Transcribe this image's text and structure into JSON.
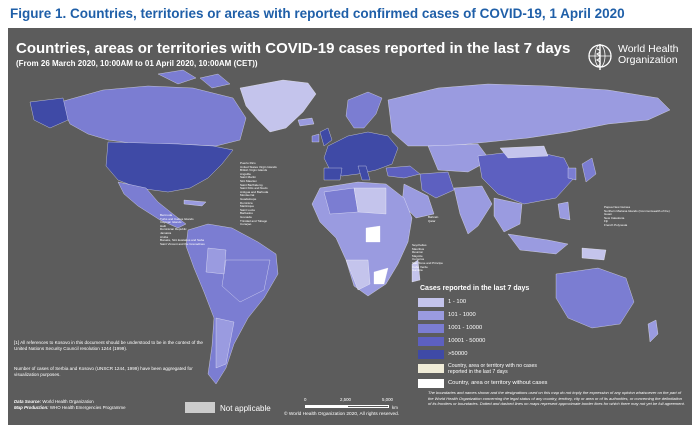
{
  "figure_title": "Figure 1. Countries, territories or areas with reported confirmed cases of COVID-19, 1 April 2020",
  "map": {
    "title": "Countries, areas or territories with COVID-19  cases reported in the last 7 days",
    "subtitle": "(From 26 March 2020, 10:00AM  to 01 April 2020, 10:00AM (CET))",
    "organization_line1": "World Health",
    "organization_line2": "Organization",
    "background_color": "#5c5c5c",
    "ocean_color": "#5c5c5c",
    "country_colors": {
      "cases_1_100": "#c4c4ec",
      "cases_101_1000": "#9a9be0",
      "cases_1001_10000": "#7b7dd2",
      "cases_10001_50000": "#5d60c0",
      "cases_over_50000": "#3f4aa6",
      "no_cases_last_7_days": "#f0ecd8",
      "without_cases": "#ffffff",
      "not_applicable": "#cccccc"
    }
  },
  "legend": {
    "title": "Cases reported in the last 7 days",
    "items": [
      {
        "label": "1 - 100",
        "color": "#c4c4ec"
      },
      {
        "label": "101 - 1000",
        "color": "#9a9be0"
      },
      {
        "label": "1001 - 10000",
        "color": "#7b7dd2"
      },
      {
        "label": "10001 - 50000",
        "color": "#5d60c0"
      },
      {
        "label": ">50000",
        "color": "#3f4aa6"
      },
      {
        "label": "Country, area or territory with no cases reported in the last 7 days",
        "color": "#f0ecd8"
      },
      {
        "label": "Country, area or territory without cases",
        "color": "#ffffff"
      }
    ]
  },
  "not_applicable": {
    "label": "Not applicable",
    "color": "#cccccc"
  },
  "notes": {
    "kosovo": "[1] All references to Kosovo in this document should be understood to be in the context of the United Nations Security Council resolution 1244 (1999).",
    "serbia": "Number of cases of Serbia and Kosovo (UNSCR 1244, 1999) have been aggregated for visualization purposes.",
    "data_source_label": "Data Source:",
    "data_source": "World Health Organization",
    "map_production_label": "Map Production:",
    "map_production": "WHO Health Emergencies Programme"
  },
  "scale": {
    "ticks": [
      "0",
      "2,500",
      "5,000"
    ],
    "unit": "km"
  },
  "copyright": "© World Health Organization 2020, All rights reserved.",
  "disclaimer": "The boundaries and names shown and the designations used on this map do not imply the expression of any opinion whatsoever on the part of the World Health Organization concerning the legal status of any country, territory, city or area or of its authorities, or concerning the delimitation of its frontiers or boundaries. Dotted and dashed lines on maps represent approximate border lines for which there may not yet be full agreement.",
  "map_labels": {
    "caribbean": [
      "Puerto Rico",
      "United States Virgin Islands",
      "British Virgin Islands",
      "Anguilla",
      "Saint Martin",
      "Sint Maarten",
      "Saint Barthélemy",
      "Saint Kitts and Nevis",
      "Antigua and Barbuda",
      "Montserrat",
      "Guadeloupe",
      "Dominica",
      "Martinique",
      "Saint Lucia",
      "Barbados",
      "Grenada",
      "Trinidad and Tobago",
      "Curaçao"
    ],
    "left_labels": [
      "Bermuda",
      "Turks and Caicos Islands",
      "Cayman Islands",
      "Haiti",
      "Dominican Republic",
      "Jamaica",
      "Aruba",
      "Bonaire, Sint Eustatius and Saba",
      "Saint Vincent and the Grenadines"
    ],
    "oceania": [
      "Papua New Guinea",
      "Northern Mariana Islands (Commonwealth of the)",
      "Guam",
      "New Caledonia",
      "Fiji",
      "French Polynesia"
    ],
    "middle_east": [
      "Bahrain",
      "Qatar"
    ],
    "africa_small": [
      "Seychelles",
      "Mauritius",
      "Réunion",
      "Mayotte",
      "Comoros",
      "Sao Tome and Principe",
      "Cabo Verde",
      "Gambia"
    ]
  }
}
